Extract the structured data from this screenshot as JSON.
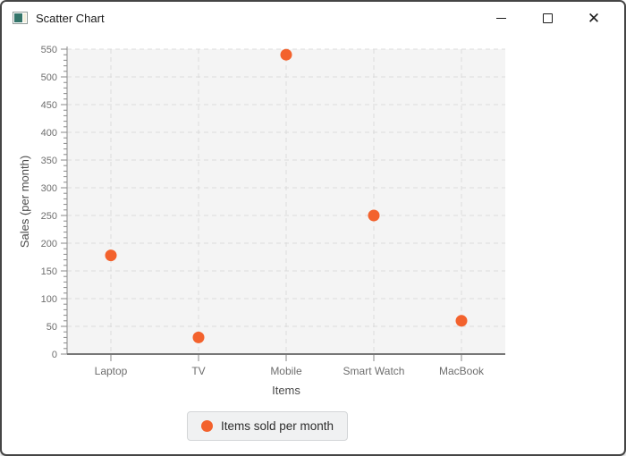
{
  "window": {
    "title": "Scatter Chart",
    "icon": "javafx-app-icon",
    "controls": {
      "minimize": "minimize",
      "maximize": "maximize",
      "close": "close"
    }
  },
  "chart_data": {
    "type": "scatter",
    "title": "",
    "categories": [
      "Laptop",
      "TV",
      "Mobile",
      "Smart Watch",
      "MacBook"
    ],
    "series": [
      {
        "name": "Items sold per month",
        "values": [
          178,
          30,
          540,
          250,
          60
        ],
        "color": "#f3622d"
      }
    ],
    "xlabel": "Items",
    "ylabel": "Sales (per month)",
    "ylim": [
      0,
      550
    ],
    "ytick_step": 50,
    "minor_tick_step": 10,
    "grid": true,
    "grid_style": "dashed",
    "legend_position": "bottom",
    "colors": {
      "plot_background": "#f4f4f4",
      "gridline": "#dbdbdb",
      "y_axis_line": "#8a8a8a",
      "x_axis_line": "#777777",
      "tick_label": "#6e6e6e",
      "axis_label": "#4a4a4a"
    }
  }
}
